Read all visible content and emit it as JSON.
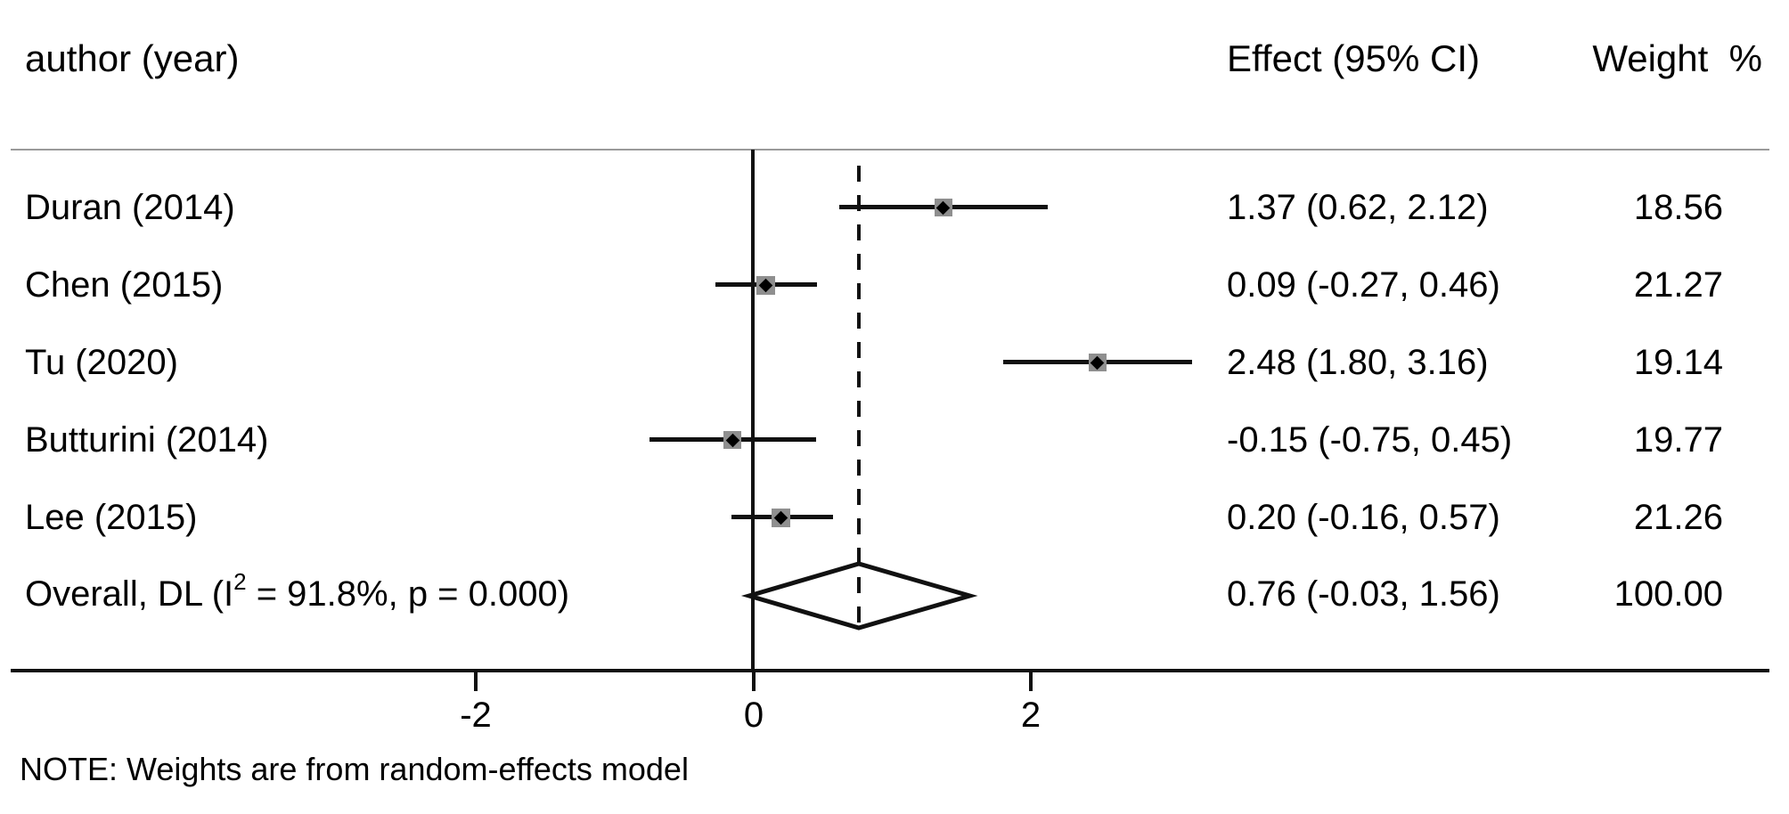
{
  "chart_data": {
    "type": "forest",
    "columns": {
      "author": "author (year)",
      "effect": "Effect (95% CI)",
      "weight": "Weight  %"
    },
    "studies": [
      {
        "label": "Duran (2014)",
        "effect": 1.37,
        "ci_low": 0.62,
        "ci_high": 2.12,
        "effect_label": "1.37 (0.62, 2.12)",
        "weight": 18.56,
        "weight_label": "18.56"
      },
      {
        "label": "Chen (2015)",
        "effect": 0.09,
        "ci_low": -0.27,
        "ci_high": 0.46,
        "effect_label": "0.09 (-0.27, 0.46)",
        "weight": 21.27,
        "weight_label": "21.27"
      },
      {
        "label": "Tu (2020)",
        "effect": 2.48,
        "ci_low": 1.8,
        "ci_high": 3.16,
        "effect_label": "2.48 (1.80, 3.16)",
        "weight": 19.14,
        "weight_label": "19.14"
      },
      {
        "label": "Butturini (2014)",
        "effect": -0.15,
        "ci_low": -0.75,
        "ci_high": 0.45,
        "effect_label": "-0.15 (-0.75, 0.45)",
        "weight": 19.77,
        "weight_label": "19.77"
      },
      {
        "label": "Lee (2015)",
        "effect": 0.2,
        "ci_low": -0.16,
        "ci_high": 0.57,
        "effect_label": "0.20 (-0.16, 0.57)",
        "weight": 21.26,
        "weight_label": "21.26"
      }
    ],
    "overall": {
      "label_pre": "Overall, DL (I",
      "label_sup": "2",
      "label_post": " = 91.8%, p = 0.000)",
      "i_squared": "91.8%",
      "p_value": "0.000",
      "effect": 0.76,
      "ci_low": -0.03,
      "ci_high": 1.56,
      "effect_label": "0.76 (-0.03, 1.56)",
      "weight": 100,
      "weight_label": "100.00"
    },
    "x_axis": {
      "ticks": [
        -2,
        0,
        2
      ]
    },
    "null_line_x": 0,
    "overall_line_x": 0.76,
    "note": "NOTE: Weights are from random-effects model",
    "legend_position": "none",
    "grid": false,
    "colors": {
      "line": "#111111",
      "marker_box": "#8f8f8f",
      "marker_point": "#000000",
      "header_rule": "#9a9a9a",
      "background": "#ffffff"
    }
  }
}
